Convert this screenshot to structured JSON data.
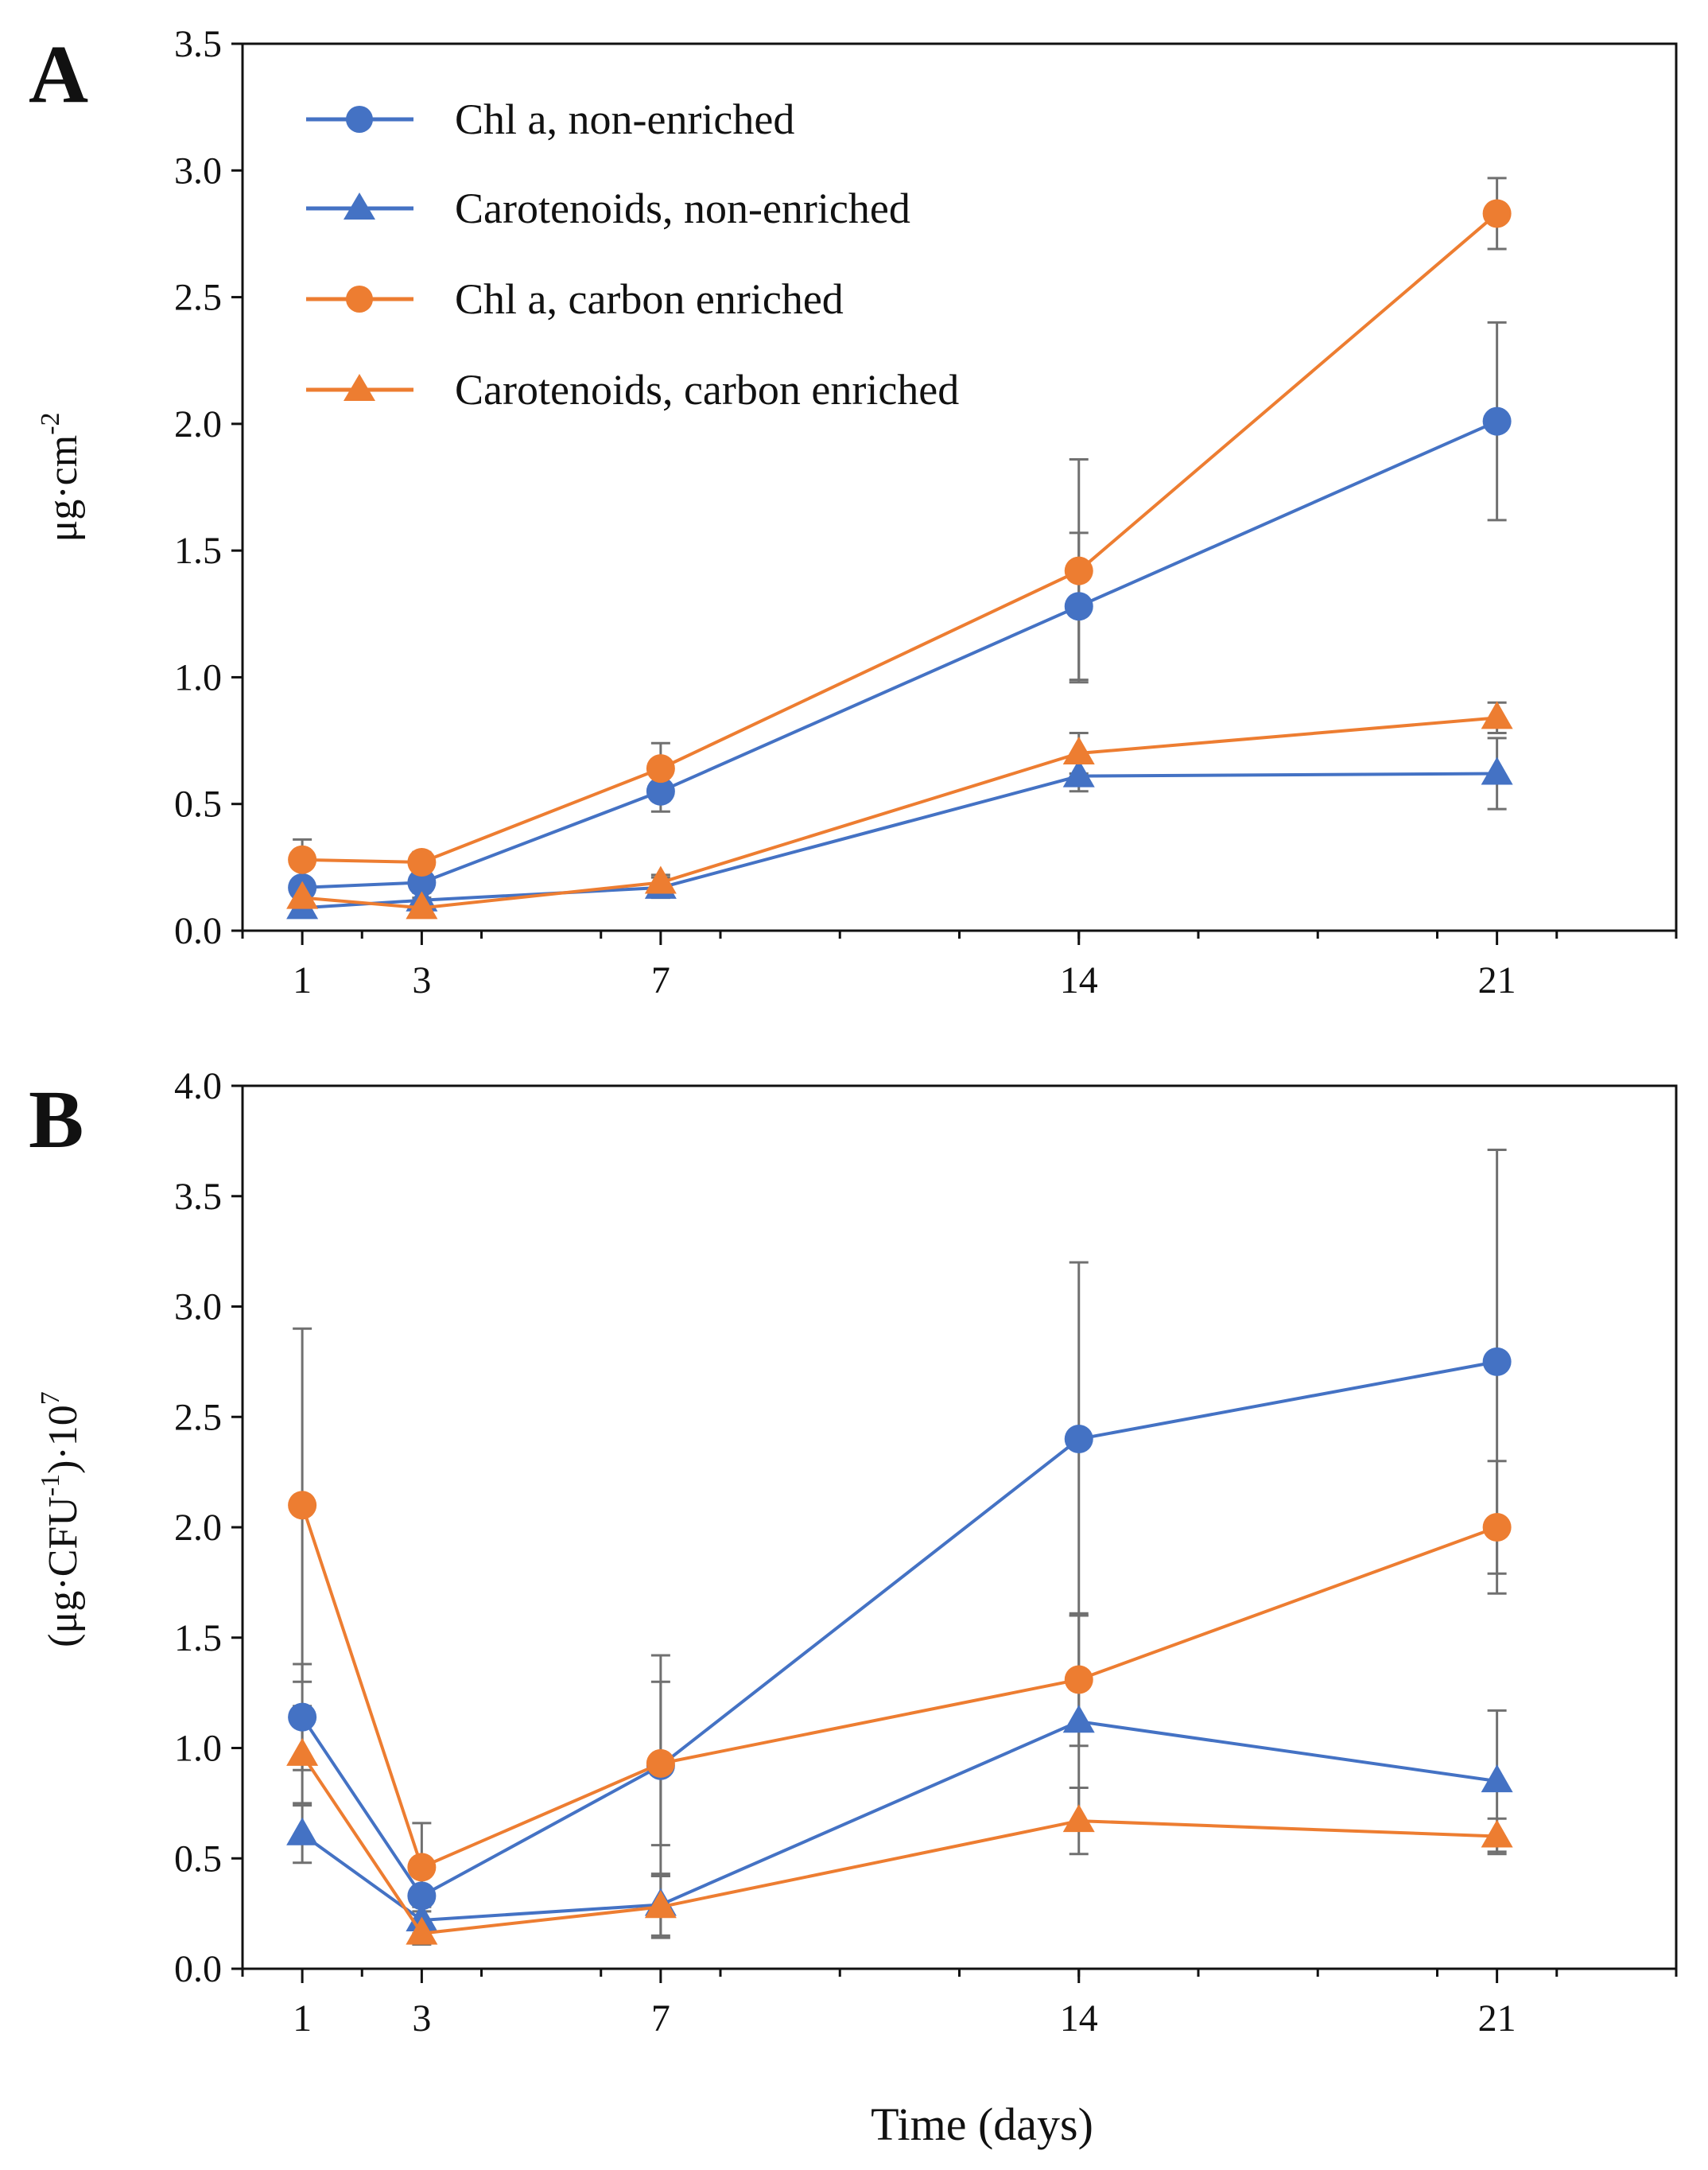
{
  "colors": {
    "blue": "#4472C4",
    "orange": "#ED7D31",
    "error_bar": "#707070",
    "axis": "#111111"
  },
  "xlabel": "Time (days)",
  "legend": [
    {
      "label": "Chl a, non-enriched",
      "color": "#4472C4",
      "marker": "circle"
    },
    {
      "label": "Carotenoids, non-enriched",
      "color": "#4472C4",
      "marker": "triangle"
    },
    {
      "label": "Chl a, carbon enriched",
      "color": "#ED7D31",
      "marker": "circle"
    },
    {
      "label": "Carotenoids, carbon enriched",
      "color": "#ED7D31",
      "marker": "triangle"
    }
  ],
  "chart_data": [
    {
      "panel_label": "A",
      "type": "line",
      "xlim": [
        0,
        24
      ],
      "xticks": [
        1,
        3,
        7,
        14,
        21
      ],
      "ylim": [
        0,
        3.5
      ],
      "yticks": [
        "0.0",
        "0.5",
        "1.0",
        "1.5",
        "2.0",
        "2.5",
        "3.0",
        "3.5"
      ],
      "ylabel": "μg·cm",
      "ylabel_sup": "-2",
      "legend_position": "top-left",
      "x": [
        1,
        3,
        7,
        14,
        21
      ],
      "series": [
        {
          "name": "Chl a, non-enriched",
          "color": "#4472C4",
          "marker": "circle",
          "values": [
            0.17,
            0.19,
            0.55,
            1.28,
            2.01
          ],
          "errors": [
            0.08,
            0.06,
            0.08,
            0.29,
            0.39
          ]
        },
        {
          "name": "Carotenoids, non-enriched",
          "color": "#4472C4",
          "marker": "triangle",
          "values": [
            0.09,
            0.12,
            0.17,
            0.61,
            0.62
          ],
          "errors": [
            0.03,
            0.03,
            0.04,
            0.06,
            0.14
          ]
        },
        {
          "name": "Chl a, carbon enriched",
          "color": "#ED7D31",
          "marker": "circle",
          "values": [
            0.28,
            0.27,
            0.64,
            1.42,
            2.83
          ],
          "errors": [
            0.08,
            0.04,
            0.1,
            0.44,
            0.14
          ]
        },
        {
          "name": "Carotenoids, carbon enriched",
          "color": "#ED7D31",
          "marker": "triangle",
          "values": [
            0.13,
            0.09,
            0.19,
            0.7,
            0.84
          ],
          "errors": [
            0.04,
            0.03,
            0.03,
            0.08,
            0.06
          ]
        }
      ]
    },
    {
      "panel_label": "B",
      "type": "line",
      "xlim": [
        0,
        24
      ],
      "xticks": [
        1,
        3,
        7,
        14,
        21
      ],
      "ylim": [
        0,
        4
      ],
      "yticks": [
        "0.0",
        "0.5",
        "1.0",
        "1.5",
        "2.0",
        "2.5",
        "3.0",
        "3.5",
        "4.0"
      ],
      "ylabel": "(μg·CFU",
      "ylabel_sup": "-1",
      "ylabel_mid": ")·10",
      "ylabel_sup2": "7",
      "xlabel": "Time (days)",
      "x": [
        1,
        3,
        7,
        14,
        21
      ],
      "series": [
        {
          "name": "Chl a, non-enriched",
          "color": "#4472C4",
          "marker": "circle",
          "values": [
            1.14,
            0.33,
            0.92,
            2.4,
            2.75
          ],
          "errors": [
            0.24,
            0.15,
            0.5,
            0.8,
            0.96
          ]
        },
        {
          "name": "Carotenoids, non-enriched",
          "color": "#4472C4",
          "marker": "triangle",
          "values": [
            0.61,
            0.22,
            0.29,
            1.12,
            0.85
          ],
          "errors": [
            0.13,
            0.06,
            0.14,
            0.48,
            0.32
          ]
        },
        {
          "name": "Chl a, carbon enriched",
          "color": "#ED7D31",
          "marker": "circle",
          "values": [
            2.1,
            0.46,
            0.93,
            1.31,
            2.0
          ],
          "errors": [
            0.8,
            0.2,
            0.37,
            0.3,
            0.3
          ]
        },
        {
          "name": "Carotenoids, carbon enriched",
          "color": "#ED7D31",
          "marker": "triangle",
          "values": [
            0.97,
            0.16,
            0.28,
            0.67,
            0.6
          ],
          "errors": [
            0.22,
            0.05,
            0.14,
            0.15,
            0.08
          ]
        }
      ]
    }
  ]
}
